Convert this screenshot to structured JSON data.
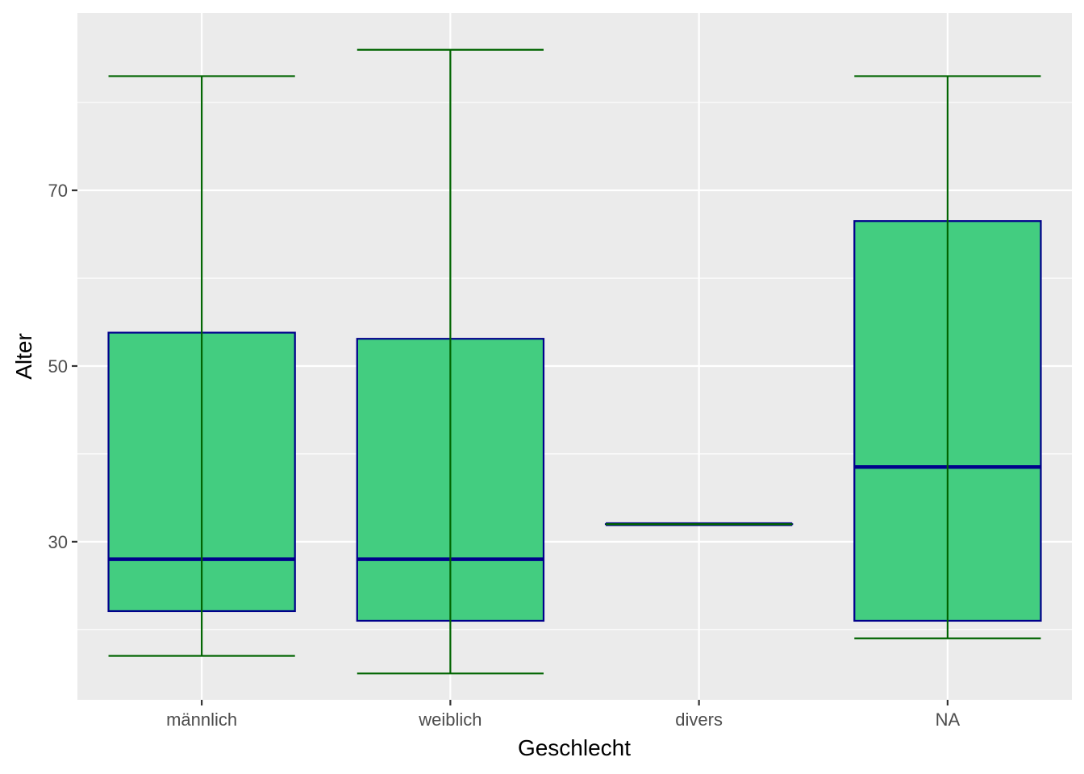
{
  "chart_data": {
    "type": "boxplot",
    "xlabel": "Geschlecht",
    "ylabel": "Alter",
    "ylim": [
      12.0,
      90.2
    ],
    "y_ticks": [
      30,
      50,
      70
    ],
    "y_minor_ticks": [
      20,
      40,
      60,
      80
    ],
    "grid": true,
    "colors": {
      "panel_background": "#EBEBEB",
      "grid": "#FFFFFF",
      "box_fill": "#43CD80",
      "box_border": "#00008B",
      "median": "#00008B",
      "whisker": "#006400",
      "tick_label": "#4D4D4D",
      "axis_title": "#000000"
    },
    "categories": [
      "männlich",
      "weiblich",
      "divers",
      "NA"
    ],
    "boxes": [
      {
        "category": "männlich",
        "min": 17,
        "q1": 22.1,
        "median": 28,
        "q3": 53.8,
        "max": 83
      },
      {
        "category": "weiblich",
        "min": 15,
        "q1": 21,
        "median": 28,
        "q3": 53.1,
        "max": 86
      },
      {
        "category": "divers",
        "min": 32,
        "q1": 32,
        "median": 32,
        "q3": 32,
        "max": 32
      },
      {
        "category": "NA",
        "min": 19,
        "q1": 21,
        "median": 38.5,
        "q3": 66.5,
        "max": 83
      }
    ]
  }
}
